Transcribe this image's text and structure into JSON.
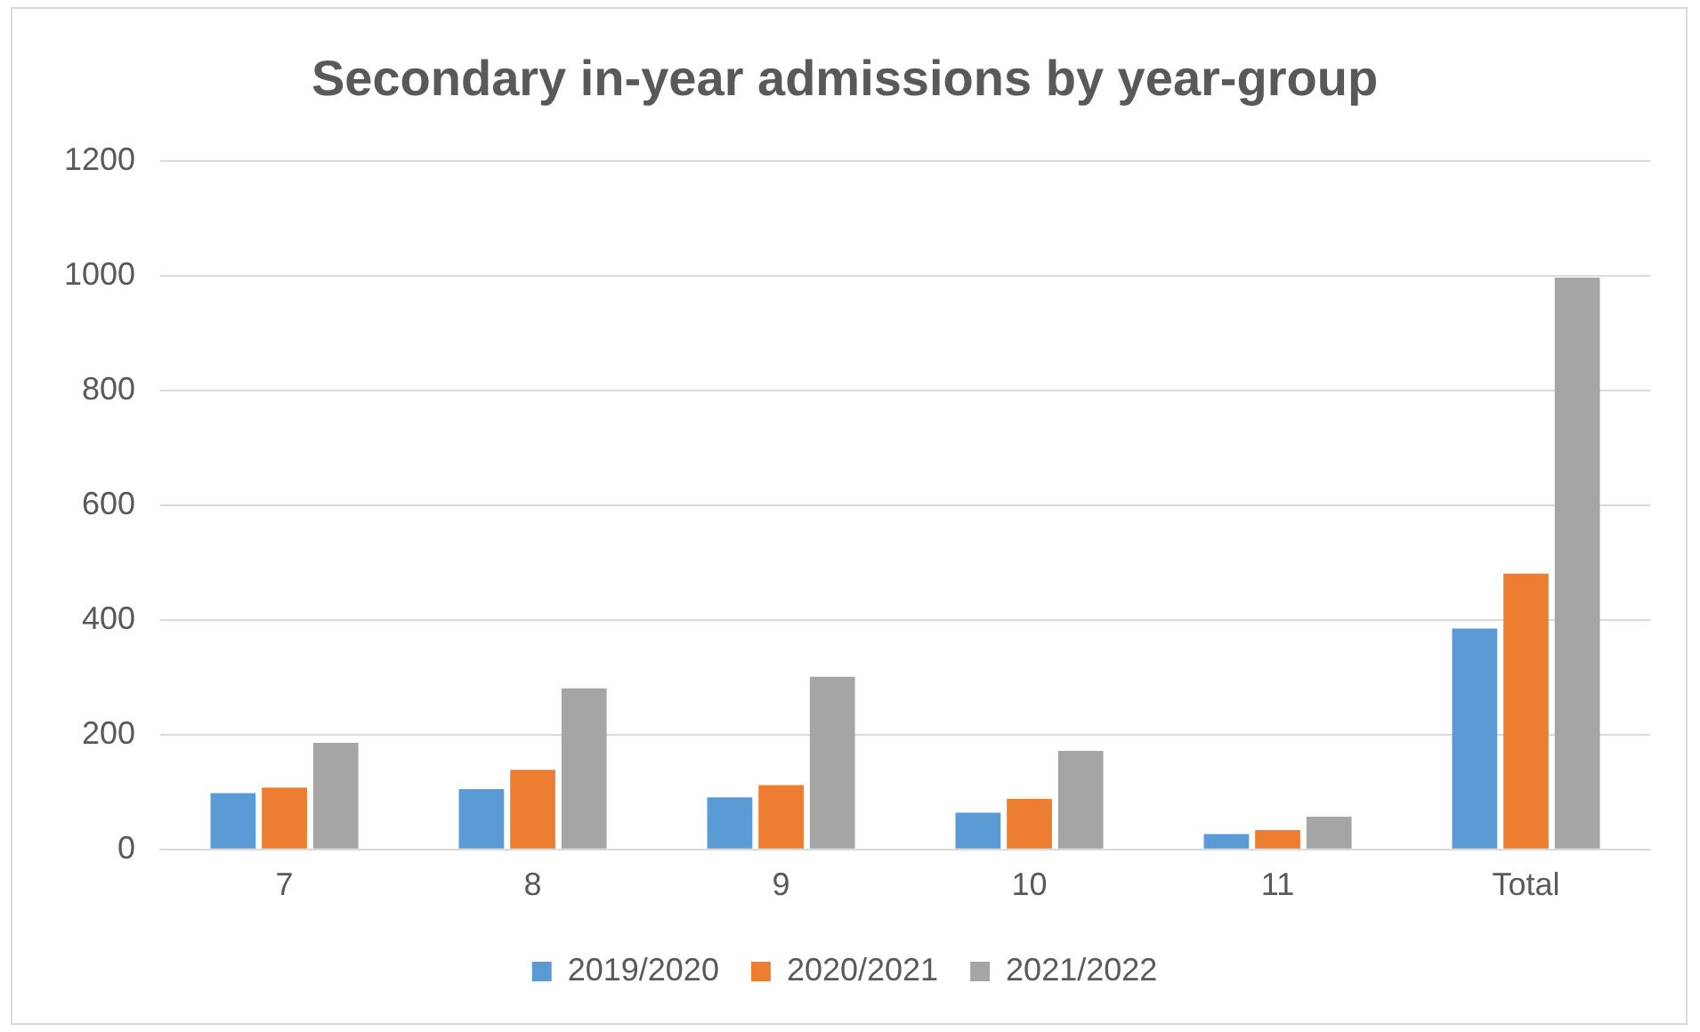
{
  "chart_data": {
    "type": "bar",
    "title": "Secondary in-year admissions by year-group",
    "categories": [
      "7",
      "8",
      "9",
      "10",
      "11",
      "Total"
    ],
    "series": [
      {
        "name": "2019/2020",
        "color": "#5b9bd5",
        "values": [
          98,
          105,
          91,
          64,
          27,
          385
        ]
      },
      {
        "name": "2020/2021",
        "color": "#ed7d31",
        "values": [
          108,
          139,
          112,
          88,
          34,
          481
        ]
      },
      {
        "name": "2021/2022",
        "color": "#a5a5a5",
        "values": [
          186,
          281,
          301,
          172,
          57,
          997
        ]
      }
    ],
    "ylim": [
      0,
      1200
    ],
    "yticks": [
      0,
      200,
      400,
      600,
      800,
      1000,
      1200
    ],
    "grid": "y",
    "legend": "bottom"
  }
}
